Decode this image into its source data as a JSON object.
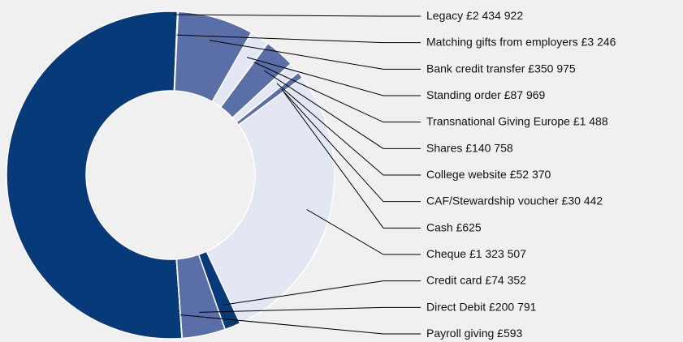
{
  "chart_data": {
    "type": "donut",
    "categories": [
      "Legacy",
      "Matching gifts from employers",
      "Bank credit transfer",
      "Standing order",
      "Transnational Giving Europe",
      "Shares",
      "College website",
      "CAF/Stewardship voucher",
      "Cash",
      "Cheque",
      "Credit card",
      "Direct Debit",
      "Payroll giving"
    ],
    "values": [
      2434922,
      3246,
      350975,
      87969,
      1488,
      140758,
      52370,
      30442,
      625,
      1323507,
      74352,
      200791,
      593
    ],
    "value_labels": [
      "£2 434 922",
      "£3 246",
      "£350 975",
      "£87 969",
      "£1 488",
      "£140 758",
      "£52 370",
      "£30 442",
      "£625",
      "£1 323 507",
      "£74 352",
      "£200 791",
      "£593"
    ],
    "colors": [
      "#063a78",
      "#e3e7f3",
      "#5a6fa8",
      "#e3e7f3",
      "#063a78",
      "#5a6fa8",
      "#e3e7f3",
      "#5a6fa8",
      "#e3e7f3",
      "#e3e7f3",
      "#063a78",
      "#5a6fa8",
      "#e3e7f3"
    ]
  }
}
